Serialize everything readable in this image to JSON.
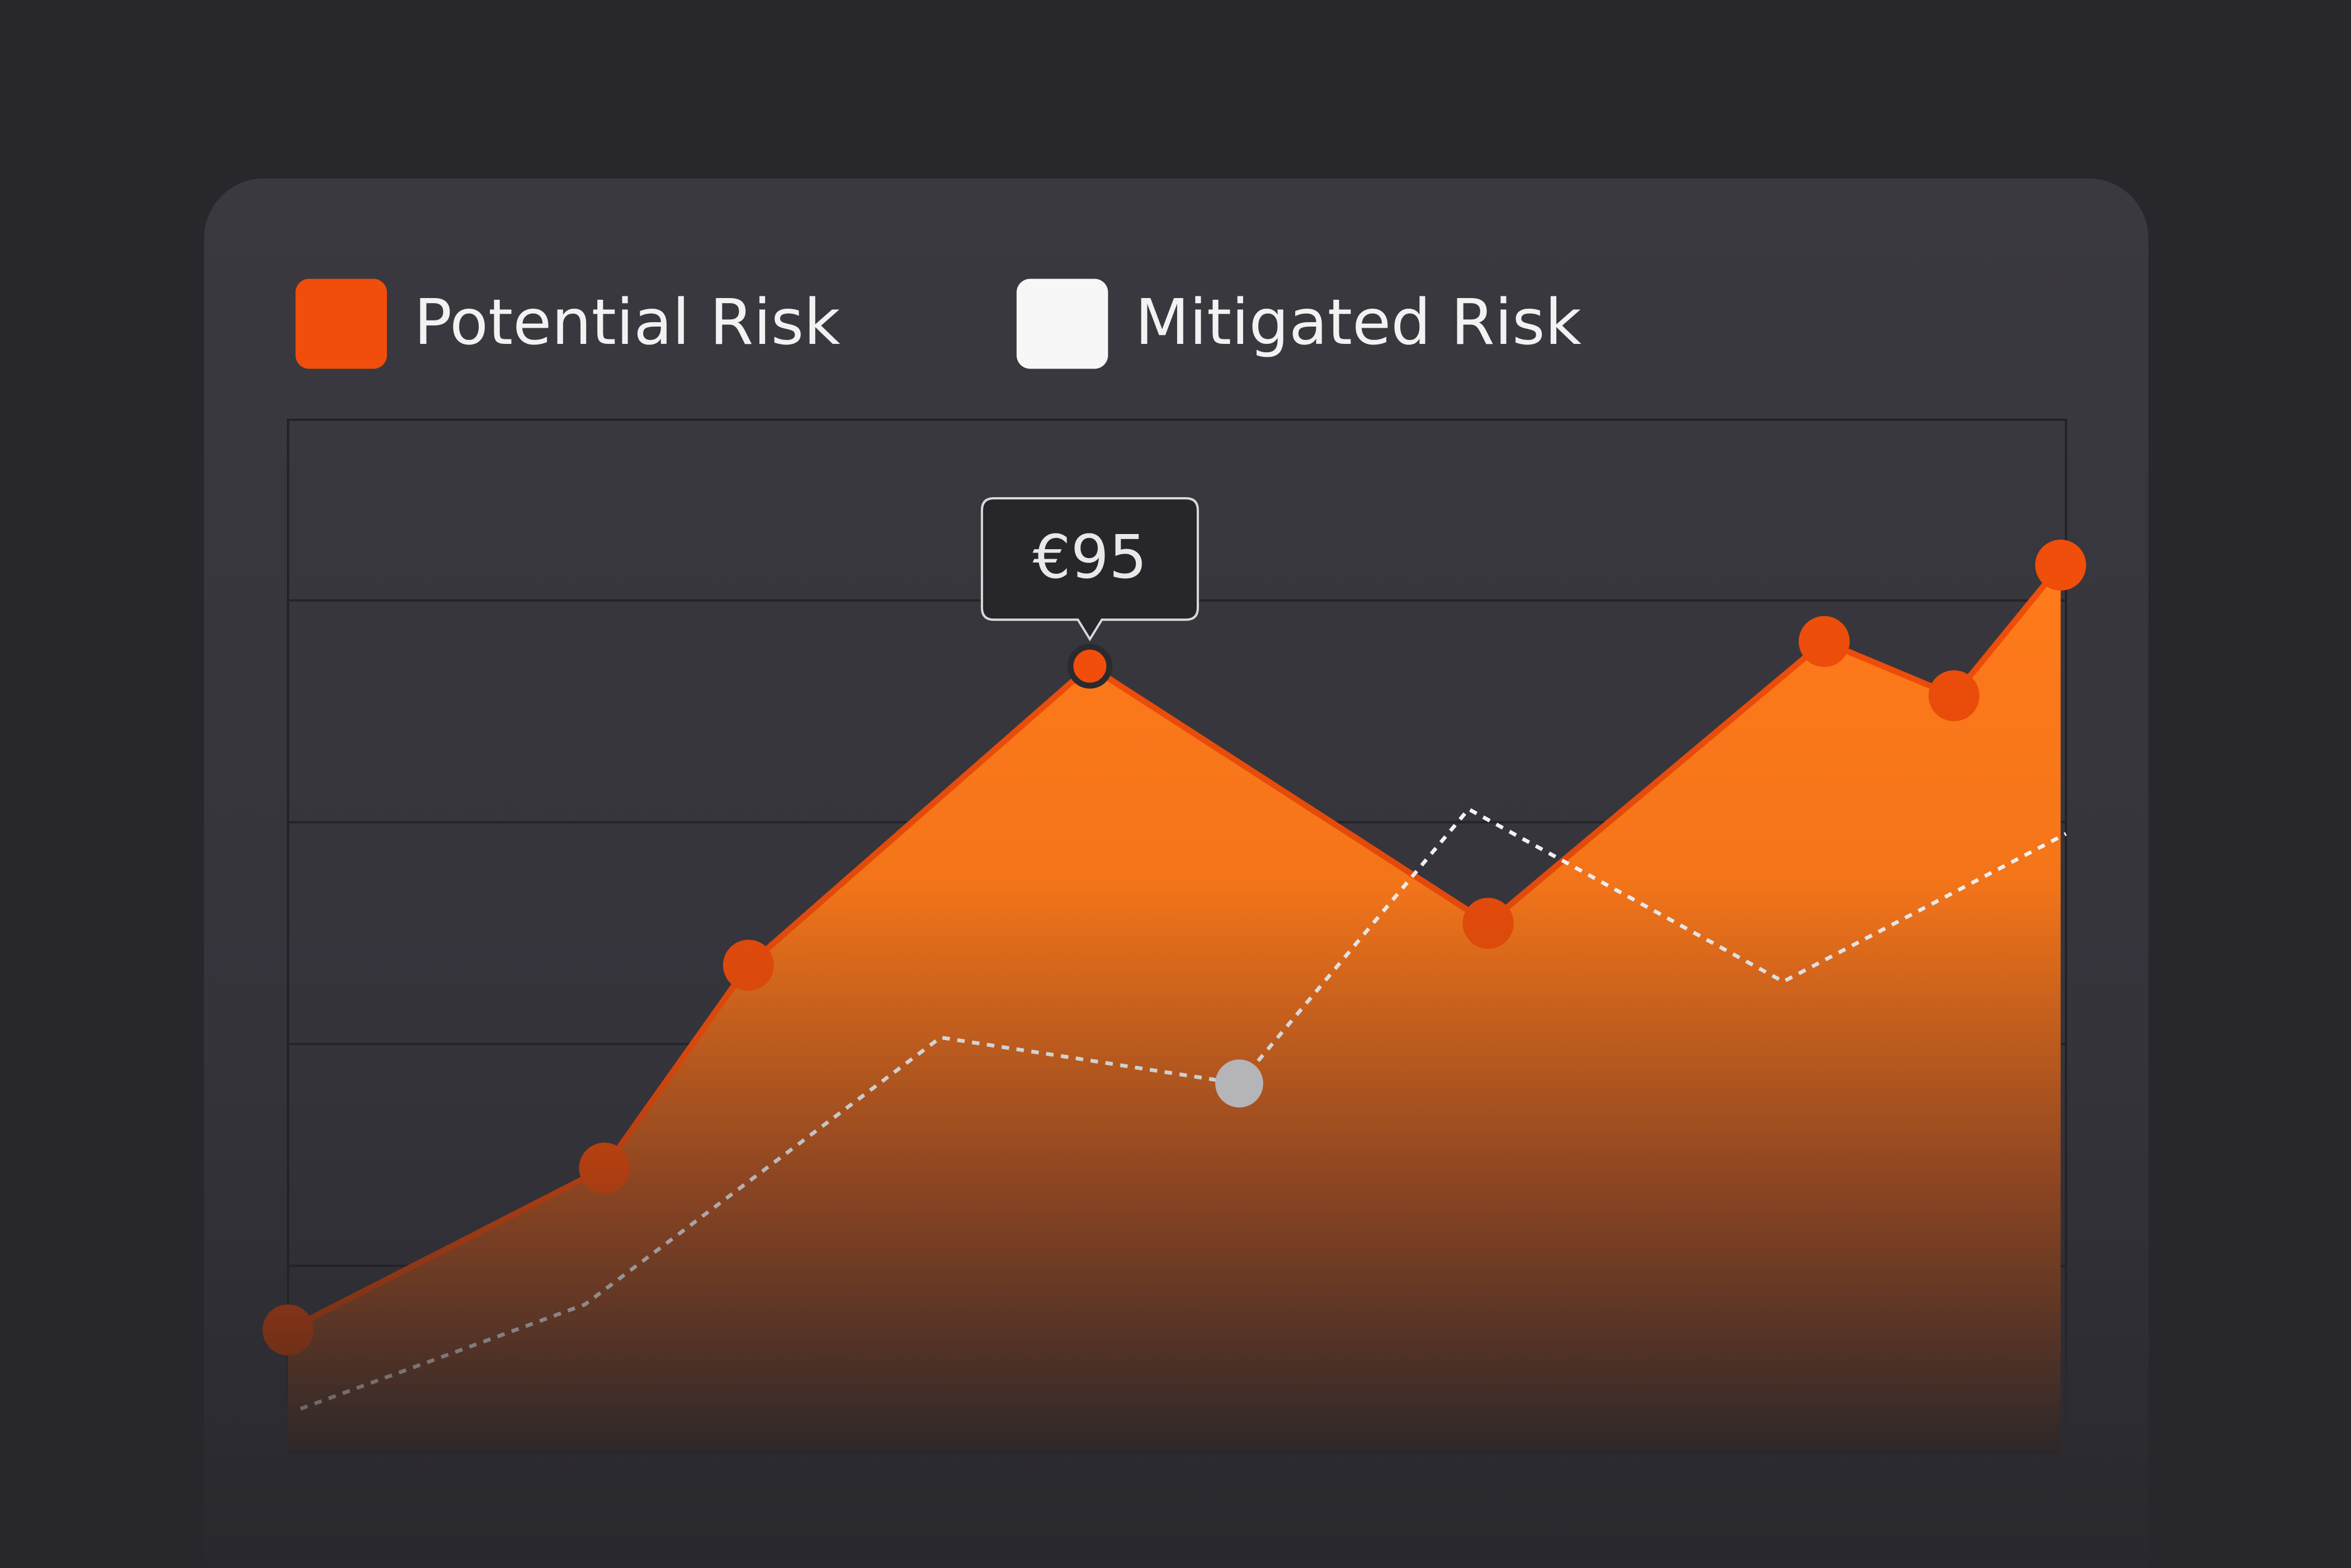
{
  "chart_data": {
    "type": "area",
    "series": [
      {
        "name": "Potential Risk",
        "color": "#f04e0a",
        "x": [
          0,
          17.8,
          25.9,
          45.1,
          67.5,
          86.4,
          93.7,
          99.7
        ],
        "values": [
          14.2,
          33.9,
          58.6,
          95,
          63.7,
          98,
          91.4,
          107.3
        ],
        "value_labels": [
          null,
          null,
          null,
          "€95",
          null,
          null,
          null,
          null
        ]
      },
      {
        "name": "Mitigated Risk",
        "color": "#f7f7f7",
        "x": [
          0.7,
          16.7,
          36.7,
          53.5,
          66.4,
          84.1,
          100
        ],
        "values": [
          4.6,
          17.3,
          49.8,
          44.2,
          77.6,
          56.6,
          74.6
        ]
      }
    ],
    "xlim": [
      0,
      100
    ],
    "ylim": [
      0,
      125
    ],
    "yticks": [
      22,
      49,
      76,
      103
    ],
    "grid": true
  }
}
